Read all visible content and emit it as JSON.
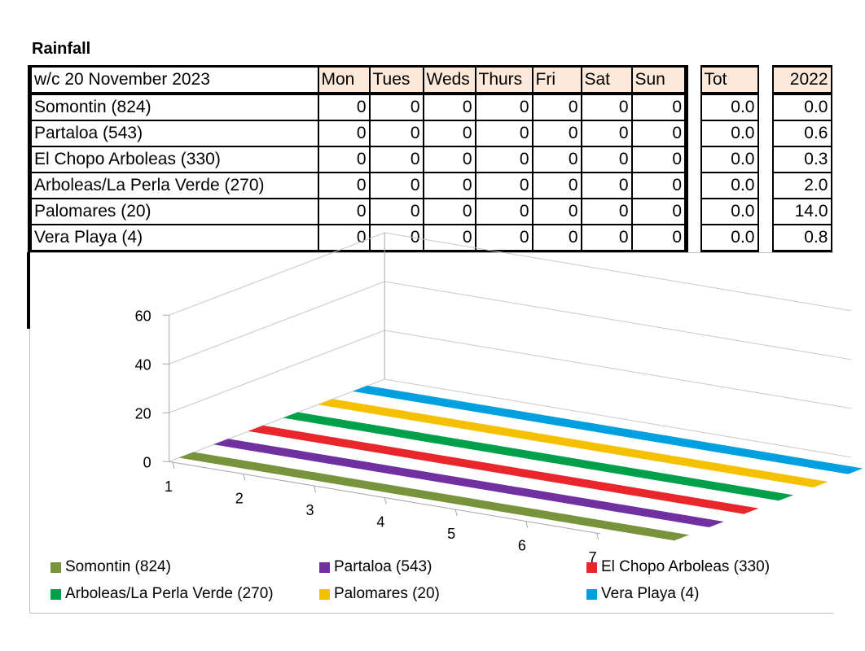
{
  "title": "Rainfall",
  "table": {
    "week_label": "w/c 20 November 2023",
    "days": [
      "Mon",
      "Tues",
      "Weds",
      "Thurs",
      "Fri",
      "Sat",
      "Sun"
    ],
    "tot_label": "Tot",
    "year_label": "2022",
    "rows": [
      {
        "location": "Somontin (824)",
        "days": [
          "0",
          "0",
          "0",
          "0",
          "0",
          "0",
          "0"
        ],
        "tot": "0.0",
        "y2022": "0.0"
      },
      {
        "location": "Partaloa (543)",
        "days": [
          "0",
          "0",
          "0",
          "0",
          "0",
          "0",
          "0"
        ],
        "tot": "0.0",
        "y2022": "0.6"
      },
      {
        "location": "El Chopo Arboleas (330)",
        "days": [
          "0",
          "0",
          "0",
          "0",
          "0",
          "0",
          "0"
        ],
        "tot": "0.0",
        "y2022": "0.3"
      },
      {
        "location": "Arboleas/La Perla Verde (270)",
        "days": [
          "0",
          "0",
          "0",
          "0",
          "0",
          "0",
          "0"
        ],
        "tot": "0.0",
        "y2022": "2.0"
      },
      {
        "location": "Palomares (20)",
        "days": [
          "0",
          "0",
          "0",
          "0",
          "0",
          "0",
          "0"
        ],
        "tot": "0.0",
        "y2022": "14.0"
      },
      {
        "location": "Vera Playa (4)",
        "days": [
          "0",
          "0",
          "0",
          "0",
          "0",
          "0",
          "0"
        ],
        "tot": "0.0",
        "y2022": "0.8"
      }
    ]
  },
  "chart_data": {
    "type": "bar",
    "variant": "3d-column",
    "title": "",
    "xlabel": "",
    "ylabel": "",
    "categories": [
      "1",
      "2",
      "3",
      "4",
      "5",
      "6",
      "7"
    ],
    "ylim": [
      0,
      60
    ],
    "yticks": [
      0,
      20,
      40,
      60
    ],
    "grid": true,
    "legend_position": "bottom",
    "series": [
      {
        "name": "Somontin (824)",
        "color": "#77933c",
        "values": [
          0,
          0,
          0,
          0,
          0,
          0,
          0
        ]
      },
      {
        "name": "Partaloa (543)",
        "color": "#7030a0",
        "values": [
          0,
          0,
          0,
          0,
          0,
          0,
          0
        ]
      },
      {
        "name": "El Chopo Arboleas (330)",
        "color": "#e8262c",
        "values": [
          0,
          0,
          0,
          0,
          0,
          0,
          0
        ]
      },
      {
        "name": "Arboleas/La Perla Verde (270)",
        "color": "#00a04a",
        "values": [
          0,
          0,
          0,
          0,
          0,
          0,
          0
        ]
      },
      {
        "name": "Palomares (20)",
        "color": "#f5c000",
        "values": [
          0,
          0,
          0,
          0,
          0,
          0,
          0
        ]
      },
      {
        "name": "Vera Playa (4)",
        "color": "#00a0e0",
        "values": [
          0,
          0,
          0,
          0,
          0,
          0,
          0
        ]
      }
    ]
  }
}
